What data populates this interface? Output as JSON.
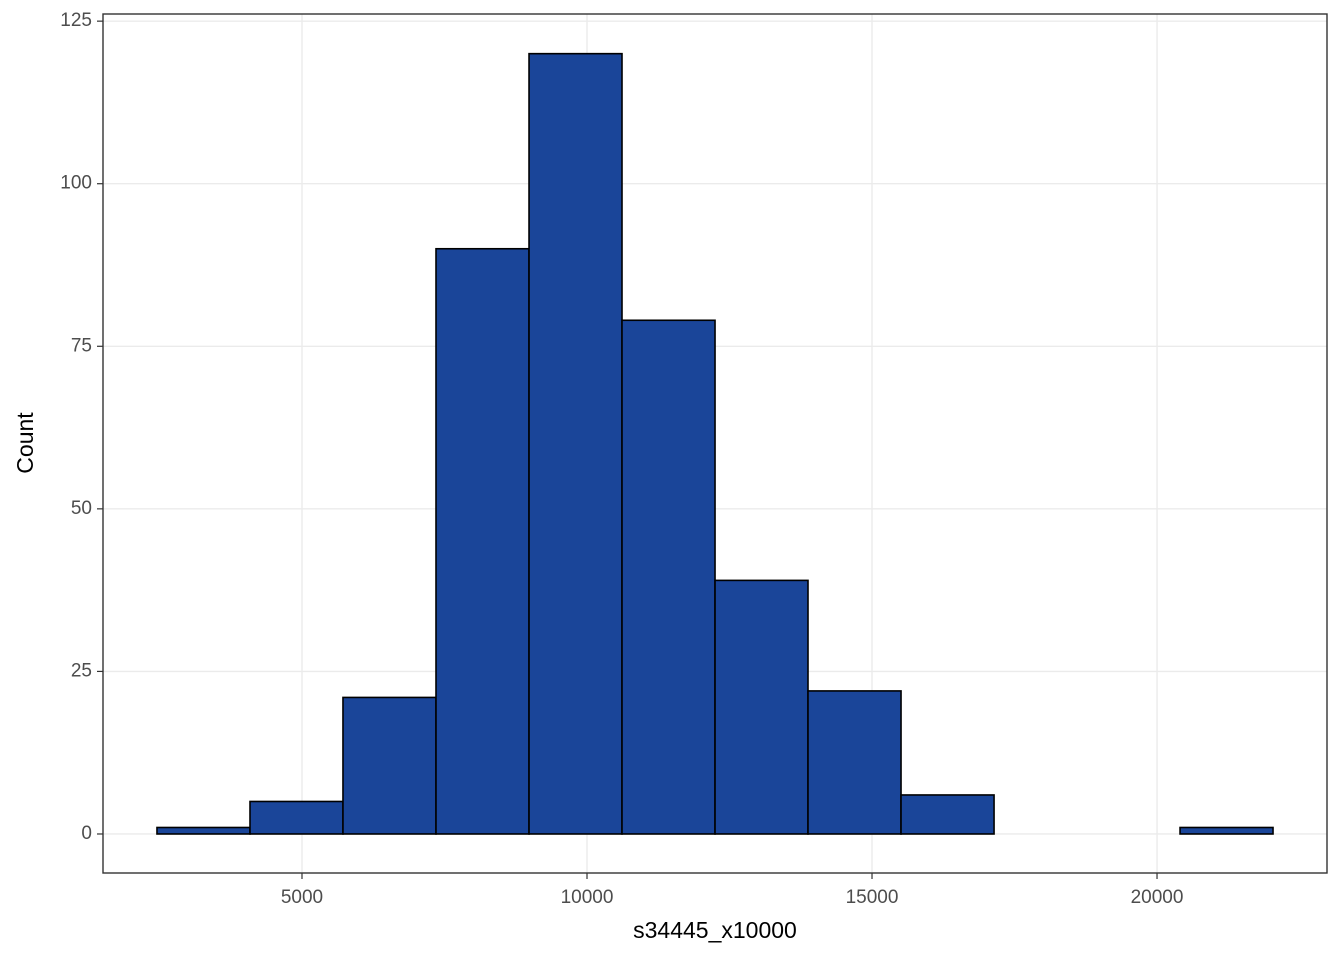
{
  "chart_data": {
    "type": "histogram",
    "x_label": "s34445_x10000",
    "y_label": "Count",
    "bins": [
      2456,
      4088,
      5719,
      7351,
      8983,
      10614,
      12246,
      13877,
      15509,
      17141,
      18772,
      20404,
      22035
    ],
    "values": [
      1,
      5,
      21,
      90,
      120,
      79,
      39,
      22,
      6,
      0,
      0,
      1
    ],
    "color": "#1a4599",
    "edge_color": "#000000",
    "xlim": [
      1509,
      22982
    ],
    "ylim": [
      -6,
      126.1
    ],
    "xticks": [
      5000,
      10000,
      15000,
      20000
    ],
    "yticks": [
      0,
      25,
      50,
      75,
      100,
      125
    ],
    "grid": true
  }
}
